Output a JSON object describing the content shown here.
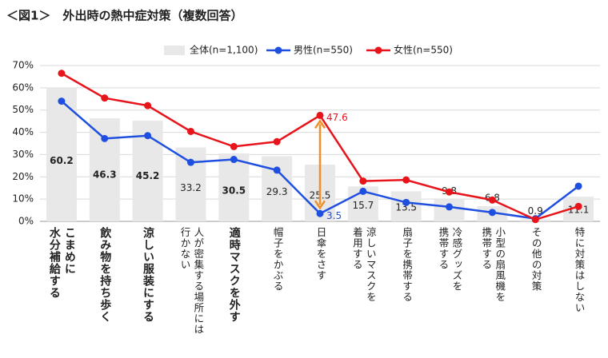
{
  "chart_data": {
    "type": "combo",
    "title": "＜図1＞　外出時の熱中症対策（複数回答）",
    "categories": [
      "こまめに\n水分補給する",
      "飲み物を持ち歩く",
      "涼しい服装にする",
      "人が密集する場所には\n行かない",
      "適時マスクを外す",
      "帽子をかぶる",
      "日傘をさす",
      "涼しいマスクを\n着用する",
      "扇子を携帯する",
      "冷感グッズを\n携帯する",
      "小型の扇風機を\n携帯する",
      "その他の対策",
      "特に対策はしない"
    ],
    "emphasized": [
      0,
      1,
      2,
      4
    ],
    "series": [
      {
        "name": "全体(n=1,100)",
        "type": "bar",
        "color": "#e8e8e8",
        "values": [
          60.2,
          46.3,
          45.2,
          33.2,
          30.5,
          29.3,
          25.5,
          15.7,
          13.5,
          9.8,
          6.8,
          0.9,
          11.1
        ]
      },
      {
        "name": "男性(n=550)",
        "type": "line",
        "color": "#1f4fe0",
        "values": [
          54,
          37.2,
          38.5,
          26.5,
          27.8,
          23,
          3.5,
          13.5,
          8.5,
          6.5,
          4,
          1.2,
          15.8
        ],
        "label_index": 6
      },
      {
        "name": "女性(n=550)",
        "type": "line",
        "color": "#e8141b",
        "values": [
          66.5,
          55.4,
          52,
          40.4,
          33.6,
          35.8,
          47.6,
          18.1,
          18.6,
          13.2,
          9.6,
          0.8,
          6.7
        ],
        "label_index": 6
      }
    ],
    "ylim": [
      0,
      70
    ],
    "yticks": [
      {
        "value": 0,
        "label": "0%"
      },
      {
        "value": 10,
        "label": "10%"
      },
      {
        "value": 20,
        "label": "20%"
      },
      {
        "value": 30,
        "label": "30%"
      },
      {
        "value": 40,
        "label": "40%"
      },
      {
        "value": 50,
        "label": "50%"
      },
      {
        "value": 60,
        "label": "60%"
      },
      {
        "value": 70,
        "label": "70%"
      }
    ],
    "grid": true
  }
}
